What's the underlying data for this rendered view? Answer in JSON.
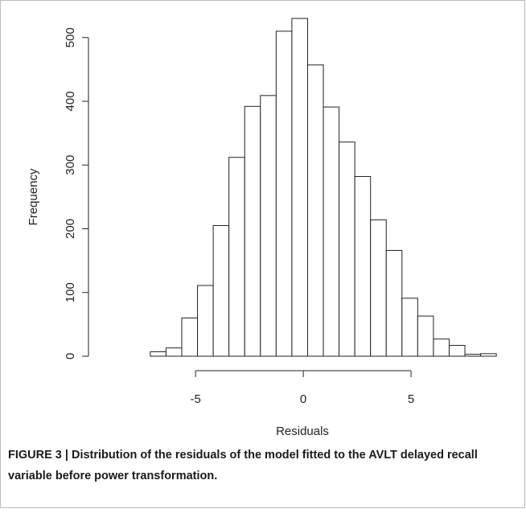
{
  "chart_data": {
    "type": "histogram",
    "x_label": "Residuals",
    "y_label": "Frequency",
    "bins": [
      -7.1,
      -6.37,
      -5.64,
      -4.91,
      -4.18,
      -3.45,
      -2.72,
      -1.99,
      -1.26,
      -0.53,
      0.2,
      0.93,
      1.66,
      2.39,
      3.12,
      3.85,
      4.58,
      5.31,
      6.04,
      6.77,
      7.5,
      8.23,
      8.96
    ],
    "values": [
      7,
      13,
      60,
      111,
      205,
      312,
      392,
      409,
      510,
      530,
      457,
      391,
      336,
      282,
      214,
      166,
      91,
      63,
      27,
      17,
      3,
      4
    ],
    "color": "#ffffff",
    "xlim": [
      -9,
      9.44
    ],
    "xticks": [
      -5,
      0,
      5
    ],
    "ylim": [
      0,
      540
    ],
    "yticks": [
      0,
      100,
      200,
      300,
      400,
      500
    ]
  },
  "caption": "FIGURE 3 | Distribution of the residuals of the model fitted to the AVLT delayed recall variable before power transformation."
}
